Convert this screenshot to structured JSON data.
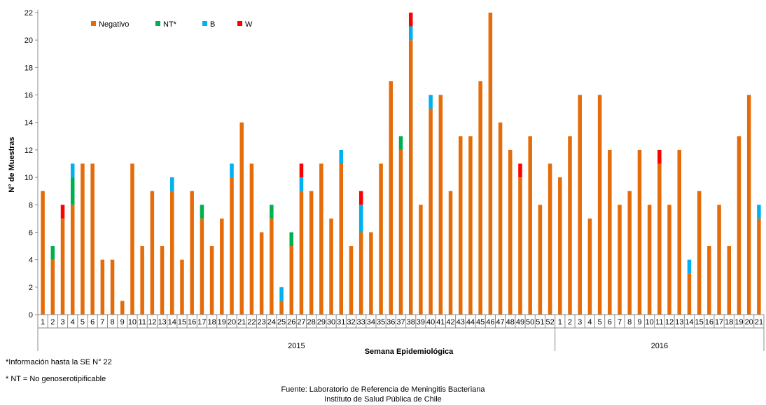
{
  "chart_data": {
    "type": "bar",
    "stacked": true,
    "ylabel": "N° de Muestras",
    "xlabel": "Semana Epidemiológica",
    "ylim": [
      0,
      22
    ],
    "yticks": [
      0,
      2,
      4,
      6,
      8,
      10,
      12,
      14,
      16,
      18,
      20,
      22
    ],
    "legend_position": "top-left",
    "grid": false,
    "years": [
      {
        "label": "2015",
        "weeks": 52
      },
      {
        "label": "2016",
        "weeks": 21
      }
    ],
    "categories": [
      "1",
      "2",
      "3",
      "4",
      "5",
      "6",
      "7",
      "8",
      "9",
      "10",
      "11",
      "12",
      "13",
      "14",
      "15",
      "16",
      "17",
      "18",
      "19",
      "20",
      "21",
      "22",
      "23",
      "24",
      "25",
      "26",
      "27",
      "28",
      "29",
      "30",
      "31",
      "32",
      "33",
      "34",
      "35",
      "36",
      "37",
      "38",
      "39",
      "40",
      "41",
      "42",
      "43",
      "44",
      "45",
      "46",
      "47",
      "48",
      "49",
      "50",
      "51",
      "52",
      "1",
      "2",
      "3",
      "4",
      "5",
      "6",
      "7",
      "8",
      "9",
      "10",
      "11",
      "12",
      "13",
      "14",
      "15",
      "16",
      "17",
      "18",
      "19",
      "20",
      "21"
    ],
    "series": [
      {
        "name": "Negativo",
        "color": "#E46C0A",
        "values": [
          9,
          4,
          7,
          8,
          11,
          11,
          4,
          4,
          1,
          11,
          5,
          9,
          5,
          9,
          4,
          9,
          7,
          5,
          7,
          10,
          14,
          11,
          6,
          7,
          1,
          5,
          9,
          9,
          11,
          7,
          11,
          5,
          6,
          6,
          11,
          17,
          12,
          20,
          8,
          15,
          16,
          9,
          13,
          13,
          17,
          22,
          14,
          12,
          10,
          13,
          8,
          11,
          10,
          13,
          16,
          7,
          16,
          12,
          8,
          9,
          12,
          8,
          11,
          8,
          12,
          3,
          9,
          5,
          8,
          5,
          13,
          16,
          7
        ]
      },
      {
        "name": "NT*",
        "color": "#00B050",
        "values": [
          0,
          1,
          0,
          2,
          0,
          0,
          0,
          0,
          0,
          0,
          0,
          0,
          0,
          0,
          0,
          0,
          1,
          0,
          0,
          0,
          0,
          0,
          0,
          1,
          0,
          1,
          0,
          0,
          0,
          0,
          0,
          0,
          0,
          0,
          0,
          0,
          1,
          0,
          0,
          0,
          0,
          0,
          0,
          0,
          0,
          0,
          0,
          0,
          0,
          0,
          0,
          0,
          0,
          0,
          0,
          0,
          0,
          0,
          0,
          0,
          0,
          0,
          0,
          0,
          0,
          0,
          0,
          0,
          0,
          0,
          0,
          0,
          0
        ]
      },
      {
        "name": "B",
        "color": "#00B0F0",
        "values": [
          0,
          0,
          0,
          1,
          0,
          0,
          0,
          0,
          0,
          0,
          0,
          0,
          0,
          1,
          0,
          0,
          0,
          0,
          0,
          1,
          0,
          0,
          0,
          0,
          1,
          0,
          1,
          0,
          0,
          0,
          1,
          0,
          2,
          0,
          0,
          0,
          0,
          1,
          0,
          1,
          0,
          0,
          0,
          0,
          0,
          0,
          0,
          0,
          0,
          0,
          0,
          0,
          0,
          0,
          0,
          0,
          0,
          0,
          0,
          0,
          0,
          0,
          0,
          0,
          0,
          1,
          0,
          0,
          0,
          0,
          0,
          0,
          1
        ]
      },
      {
        "name": "W",
        "color": "#FF0000",
        "values": [
          0,
          0,
          1,
          0,
          0,
          0,
          0,
          0,
          0,
          0,
          0,
          0,
          0,
          0,
          0,
          0,
          0,
          0,
          0,
          0,
          0,
          0,
          0,
          0,
          0,
          0,
          1,
          0,
          0,
          0,
          0,
          0,
          1,
          0,
          0,
          0,
          0,
          1,
          0,
          0,
          0,
          0,
          0,
          0,
          0,
          0,
          0,
          0,
          1,
          0,
          0,
          0,
          0,
          0,
          0,
          0,
          0,
          0,
          0,
          0,
          0,
          0,
          1,
          0,
          0,
          0,
          0,
          0,
          0,
          0,
          0,
          0,
          0
        ]
      }
    ]
  },
  "notes": {
    "info": "*Información  hasta la SE N° 22",
    "nt": "* NT = No genoserotipificable"
  },
  "source": {
    "line1": "Fuente: Laboratorio de Referencia  de Meningitis Bacteriana",
    "line2": "Instituto de Salud Pública de Chile"
  }
}
